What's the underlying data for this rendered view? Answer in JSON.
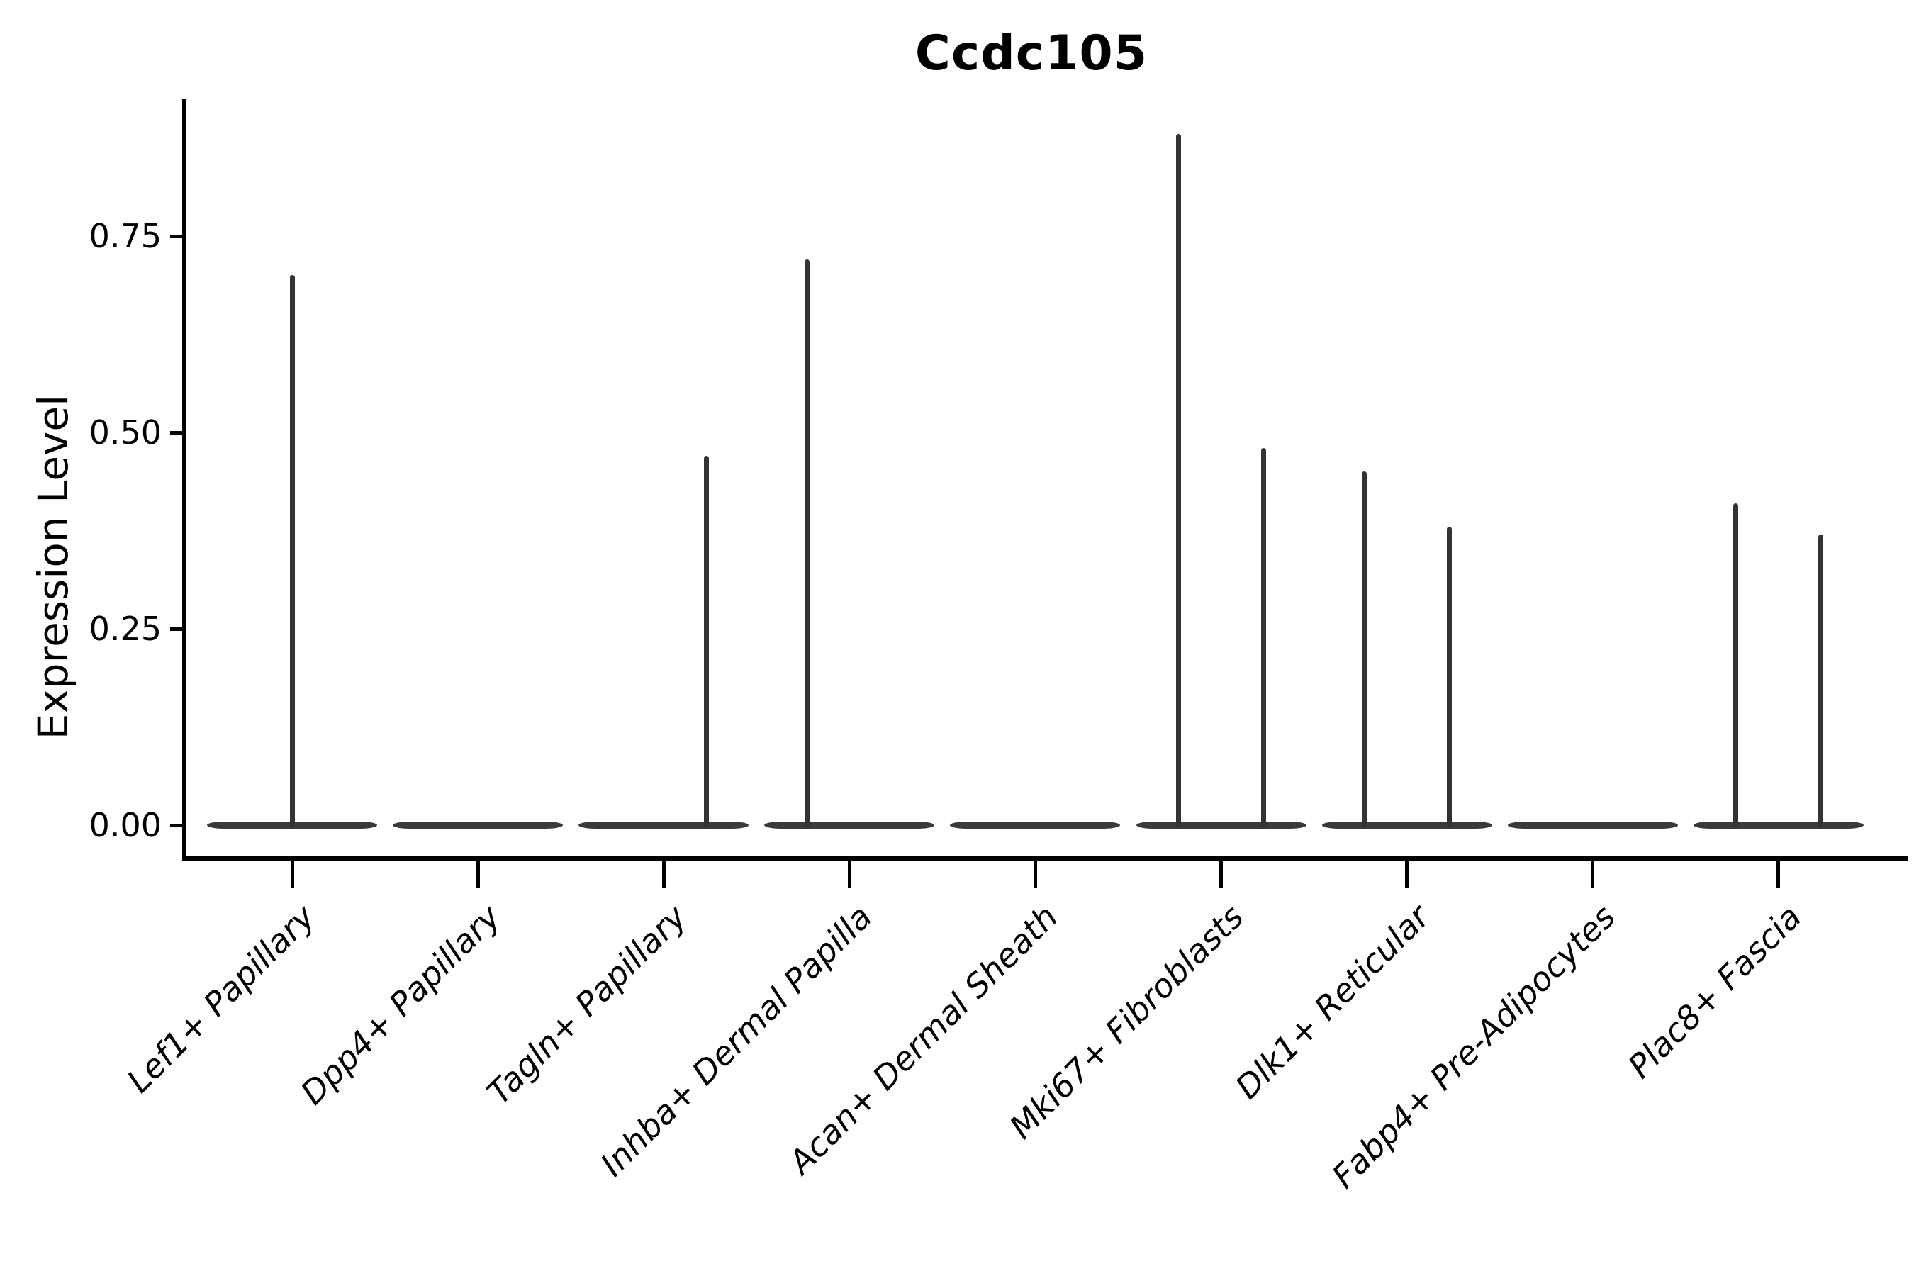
{
  "chart_data": {
    "type": "violin",
    "title": "Ccdc105",
    "xlabel": "",
    "ylabel": "Expression Level",
    "y_ticks": [
      0.0,
      0.25,
      0.5,
      0.75
    ],
    "y_tick_labels": [
      "0.00",
      "0.25",
      "0.50",
      "0.75"
    ],
    "ylim": [
      -0.04,
      0.92
    ],
    "grid": false,
    "legend_position": "none",
    "categories": [
      "Lef1+ Papillary",
      "Dpp4+ Papillary",
      "Tagln+ Papillary",
      "Inhba+ Dermal Papilla",
      "Acan+ Dermal Sheath",
      "Mki67+ Fibroblasts",
      "Dlk1+ Reticular",
      "Fabp4+ Pre-Adipocytes",
      "Plac8+ Fascia"
    ],
    "violins": [
      {
        "category": "Lef1+ Papillary",
        "zero_bulge": true,
        "spikes": [
          {
            "side": "center",
            "max": 0.7
          }
        ]
      },
      {
        "category": "Dpp4+ Papillary",
        "zero_bulge": true,
        "spikes": []
      },
      {
        "category": "Tagln+ Papillary",
        "zero_bulge": true,
        "spikes": [
          {
            "side": "right",
            "max": 0.47
          }
        ]
      },
      {
        "category": "Inhba+ Dermal Papilla",
        "zero_bulge": true,
        "spikes": [
          {
            "side": "left",
            "max": 0.72
          }
        ]
      },
      {
        "category": "Acan+ Dermal Sheath",
        "zero_bulge": true,
        "spikes": []
      },
      {
        "category": "Mki67+ Fibroblasts",
        "zero_bulge": true,
        "spikes": [
          {
            "side": "left",
            "max": 0.88
          },
          {
            "side": "right",
            "max": 0.48
          }
        ]
      },
      {
        "category": "Dlk1+ Reticular",
        "zero_bulge": true,
        "spikes": [
          {
            "side": "left",
            "max": 0.45
          },
          {
            "side": "right",
            "max": 0.38
          }
        ]
      },
      {
        "category": "Fabp4+ Pre-Adipocytes",
        "zero_bulge": true,
        "spikes": []
      },
      {
        "category": "Plac8+ Fascia",
        "zero_bulge": true,
        "spikes": [
          {
            "side": "left",
            "max": 0.41
          },
          {
            "side": "right",
            "max": 0.37
          }
        ]
      }
    ],
    "colors": {
      "violin": "#333333",
      "violin_body": "#3a3a3a",
      "axis": "#000000",
      "text": "#000000",
      "background": "#ffffff"
    }
  }
}
